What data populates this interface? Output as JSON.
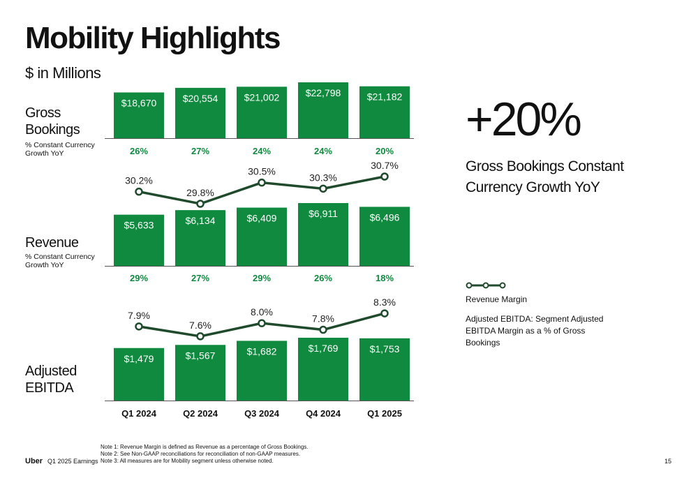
{
  "title": "Mobility Highlights",
  "subtitle": "$ in Millions",
  "sections": {
    "gross_bookings": {
      "label": "Gross Bookings",
      "note": "% Constant Currency Growth YoY"
    },
    "revenue": {
      "label": "Revenue",
      "note": "% Constant Currency Growth YoY"
    },
    "adjusted_ebitda": {
      "label": "Adjusted EBITDA"
    }
  },
  "kpi": {
    "value": "+20%",
    "caption": "Gross Bookings Constant Currency Growth YoY"
  },
  "legend": {
    "line_label": "Revenue Margin",
    "ebitda_note": "Adjusted EBITDA: Segment Adjusted EBITDA Margin as a % of Gross Bookings"
  },
  "colors": {
    "bar": "#108a3f",
    "line": "#1f4a2c",
    "growth_text": "#108a3f"
  },
  "icons": {
    "legend": "line-with-markers-icon"
  },
  "chart_data": [
    {
      "type": "bar",
      "name": "Gross Bookings",
      "categories": [
        "Q1 2024",
        "Q2 2024",
        "Q3 2024",
        "Q4 2024",
        "Q1 2025"
      ],
      "values": [
        18670,
        20554,
        21002,
        22798,
        21182
      ],
      "value_labels": [
        "$18,670",
        "$20,554",
        "$21,002",
        "$22,798",
        "$21,182"
      ],
      "growth_labels": [
        "26%",
        "27%",
        "24%",
        "24%",
        "20%"
      ]
    },
    {
      "type": "bar",
      "name": "Revenue",
      "categories": [
        "Q1 2024",
        "Q2 2024",
        "Q3 2024",
        "Q4 2024",
        "Q1 2025"
      ],
      "values": [
        5633,
        6134,
        6409,
        6911,
        6496
      ],
      "value_labels": [
        "$5,633",
        "$6,134",
        "$6,409",
        "$6,911",
        "$6,496"
      ],
      "growth_labels": [
        "29%",
        "27%",
        "29%",
        "26%",
        "18%"
      ],
      "line_values": [
        30.2,
        29.8,
        30.5,
        30.3,
        30.7
      ],
      "line_labels": [
        "30.2%",
        "29.8%",
        "30.5%",
        "30.3%",
        "30.7%"
      ]
    },
    {
      "type": "bar",
      "name": "Adjusted EBITDA",
      "categories": [
        "Q1 2024",
        "Q2 2024",
        "Q3 2024",
        "Q4 2024",
        "Q1 2025"
      ],
      "values": [
        1479,
        1567,
        1682,
        1769,
        1753
      ],
      "value_labels": [
        "$1,479",
        "$1,567",
        "$1,682",
        "$1,769",
        "$1,753"
      ],
      "line_values": [
        7.9,
        7.6,
        8.0,
        7.8,
        8.3
      ],
      "line_labels": [
        "7.9%",
        "7.6%",
        "8.0%",
        "7.8%",
        "8.3%"
      ]
    }
  ],
  "footer": {
    "brand": "Uber",
    "period": "Q1 2025 Earnings",
    "notes": [
      "Note 1: Revenue Margin is defined as Revenue as a percentage of Gross Bookings.",
      "Note 2: See Non-GAAP reconciliations for reconciliation of non-GAAP measures.",
      "Note 3: All measures are for Mobility segment unless otherwise noted."
    ],
    "page_number": "15"
  }
}
